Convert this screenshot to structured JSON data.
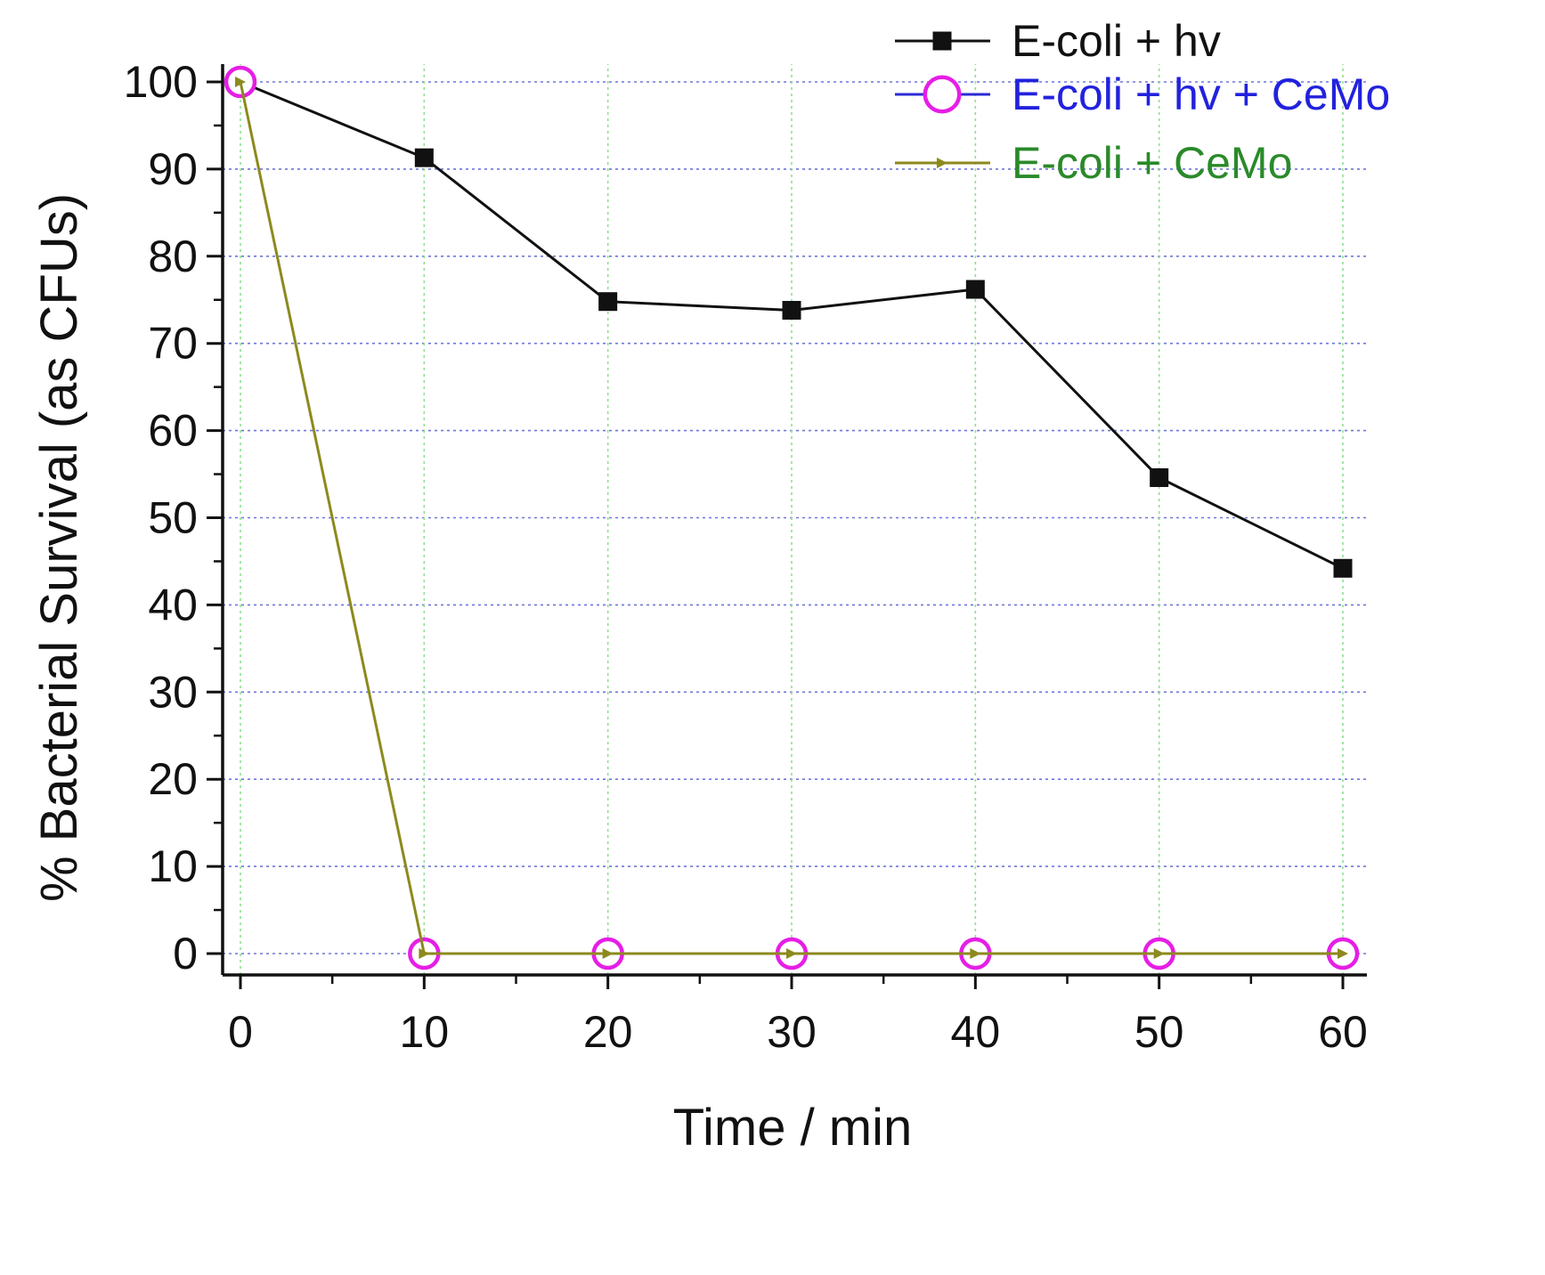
{
  "chart_data": {
    "type": "line",
    "title": "",
    "xlabel": "Time / min",
    "ylabel": "% Bacterial Survival (as CFUs)",
    "xlim": [
      0,
      60
    ],
    "ylim": [
      0,
      100
    ],
    "x_ticks": [
      0,
      10,
      20,
      30,
      40,
      50,
      60
    ],
    "y_ticks": [
      0,
      10,
      20,
      30,
      40,
      50,
      60,
      70,
      80,
      90,
      100
    ],
    "grid": true,
    "legend_position": "top-right",
    "series": [
      {
        "name": "E-coli + hv",
        "color": "#111111",
        "text_color": "#111111",
        "marker": "square",
        "x": [
          0,
          10,
          20,
          30,
          40,
          50,
          60
        ],
        "values": [
          100,
          91.3,
          74.8,
          73.8,
          76.2,
          54.6,
          44.2
        ]
      },
      {
        "name": "E-coli + hv + CeMo",
        "color": "#e61ee6",
        "line_color": "#2b2bd6",
        "text_color": "#2222dd",
        "marker": "circle",
        "x": [
          0,
          10,
          20,
          30,
          40,
          50,
          60
        ],
        "values": [
          100,
          0,
          0,
          0,
          0,
          0,
          0
        ]
      },
      {
        "name": "E-coli + CeMo",
        "color": "#8c8a1e",
        "text_color": "#2a8a2a",
        "marker": "triangle-right",
        "x": [
          0,
          10,
          20,
          30,
          40,
          50,
          60
        ],
        "values": [
          100,
          0,
          0,
          0,
          0,
          0,
          0
        ]
      }
    ]
  }
}
